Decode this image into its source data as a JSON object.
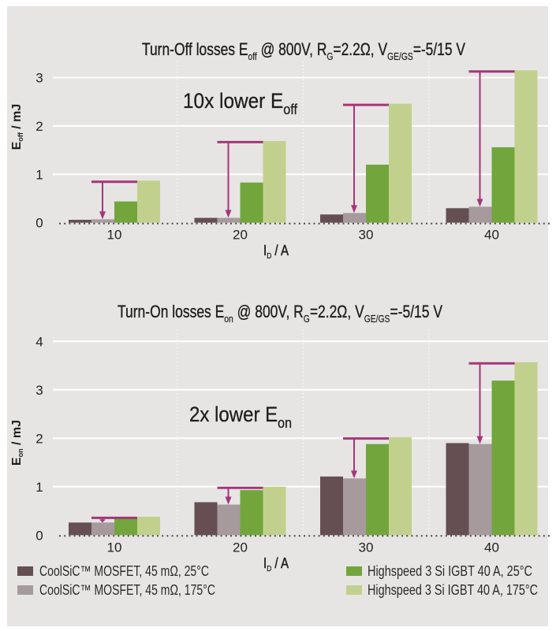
{
  "figure": {
    "background": "#e6e5e3",
    "grid_color": "#ffffff",
    "arrow_color": "#a63579"
  },
  "legend": {
    "position": "bottom",
    "items": [
      {
        "label": "CoolSiC™ MOSFET, 45 mΩ, 25°C",
        "color": "#654f53"
      },
      {
        "label": "CoolSiC™ MOSFET, 45 mΩ, 175°C",
        "color": "#a69a9c"
      },
      {
        "label": "Highspeed 3 Si IGBT 40 A, 25°C",
        "color": "#72a63c"
      },
      {
        "label": "Highspeed 3 Si IGBT 40 A, 175°C",
        "color": "#c1d18d"
      }
    ]
  },
  "chart_data": [
    {
      "type": "bar",
      "title": "Turn-Off losses Eoff @ 800V, RG=2.2Ω, VGE/GS=-5/15 V",
      "title_parts": [
        {
          "text": "Turn-Off losses E"
        },
        {
          "text": "off",
          "sub": true
        },
        {
          "text": " @ 800V, R"
        },
        {
          "text": "G",
          "sub": true
        },
        {
          "text": "=2.2Ω, V"
        },
        {
          "text": "GE/GS",
          "sub": true
        },
        {
          "text": "=-5/15 V"
        }
      ],
      "xlabel": "ID / A",
      "xlabel_parts": [
        {
          "text": "I"
        },
        {
          "text": "D",
          "sub": true
        },
        {
          "text": " / A"
        }
      ],
      "ylabel": "Eoff / mJ",
      "ylabel_parts": [
        {
          "text": "E"
        },
        {
          "text": "off",
          "sub": true
        },
        {
          "text": " / mJ"
        }
      ],
      "categories": [
        "10",
        "20",
        "30",
        "40"
      ],
      "ylim": [
        0,
        3
      ],
      "yticks": [
        0,
        1,
        2,
        3
      ],
      "grid": true,
      "series": [
        {
          "name": "CoolSiC™ MOSFET, 45 mΩ, 25°C",
          "color": "#654f53",
          "values": [
            0.06,
            0.1,
            0.17,
            0.3
          ]
        },
        {
          "name": "CoolSiC™ MOSFET, 45 mΩ, 175°C",
          "color": "#a69a9c",
          "values": [
            0.07,
            0.1,
            0.2,
            0.33
          ]
        },
        {
          "name": "Highspeed 3 Si IGBT 40 A, 25°C",
          "color": "#72a63c",
          "values": [
            0.44,
            0.83,
            1.2,
            1.56
          ]
        },
        {
          "name": "Highspeed 3 Si IGBT 40 A, 175°C",
          "color": "#c1d18d",
          "values": [
            0.87,
            1.69,
            2.46,
            3.15
          ]
        }
      ],
      "annotation": {
        "text": "10x lower Eoff",
        "parts": [
          {
            "text": "10x lower E"
          },
          {
            "text": "off",
            "sub": true
          }
        ]
      },
      "arrows": {
        "from": "Highspeed 3 Si IGBT 40 A, 175°C",
        "to": "CoolSiC™ MOSFET, 45 mΩ, 175°C",
        "color": "#a63579"
      }
    },
    {
      "type": "bar",
      "title": "Turn-On losses Eon @ 800V, RG=2.2Ω, VGE/GS=-5/15 V",
      "title_parts": [
        {
          "text": "Turn-On losses E"
        },
        {
          "text": "on",
          "sub": true
        },
        {
          "text": " @ 800V, R"
        },
        {
          "text": "G",
          "sub": true
        },
        {
          "text": "=2.2Ω, V"
        },
        {
          "text": "GE/GS",
          "sub": true
        },
        {
          "text": "=-5/15 V"
        }
      ],
      "xlabel": "ID / A",
      "xlabel_parts": [
        {
          "text": "I"
        },
        {
          "text": "D",
          "sub": true
        },
        {
          "text": " / A"
        }
      ],
      "ylabel": "Eon / mJ",
      "ylabel_parts": [
        {
          "text": "E"
        },
        {
          "text": "on",
          "sub": true
        },
        {
          "text": " / mJ"
        }
      ],
      "categories": [
        "10",
        "20",
        "30",
        "40"
      ],
      "ylim": [
        0,
        4
      ],
      "yticks": [
        0,
        1,
        2,
        3,
        4
      ],
      "grid": true,
      "series": [
        {
          "name": "CoolSiC™ MOSFET, 45 mΩ, 25°C",
          "color": "#654f53",
          "values": [
            0.26,
            0.68,
            1.21,
            1.9
          ]
        },
        {
          "name": "CoolSiC™ MOSFET, 45 mΩ, 175°C",
          "color": "#a69a9c",
          "values": [
            0.26,
            0.63,
            1.17,
            1.88
          ]
        },
        {
          "name": "Highspeed 3 Si IGBT 40 A, 25°C",
          "color": "#72a63c",
          "values": [
            0.34,
            0.93,
            1.88,
            3.19
          ]
        },
        {
          "name": "Highspeed 3 Si IGBT 40 A, 175°C",
          "color": "#c1d18d",
          "values": [
            0.38,
            1.0,
            2.02,
            3.57
          ]
        }
      ],
      "annotation": {
        "text": "2x lower Eon",
        "parts": [
          {
            "text": "2x lower E"
          },
          {
            "text": "on",
            "sub": true
          }
        ]
      },
      "arrows": {
        "from": "Highspeed 3 Si IGBT 40 A, 175°C",
        "to": "CoolSiC™ MOSFET, 45 mΩ, 175°C",
        "color": "#a63579"
      }
    }
  ]
}
